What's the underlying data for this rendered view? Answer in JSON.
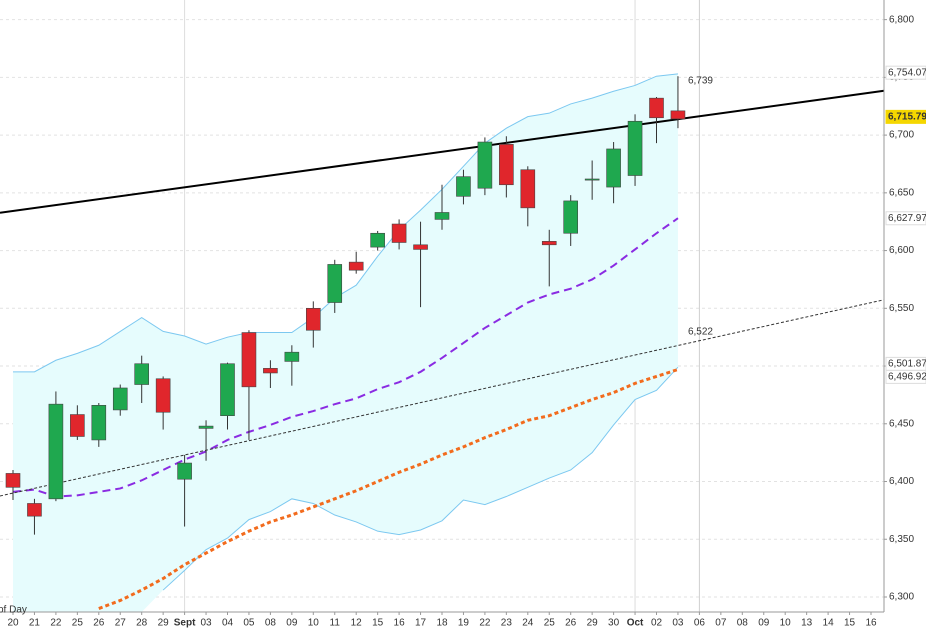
{
  "chart_data": {
    "type": "candlestick",
    "categories": [
      "20",
      "21",
      "22",
      "25",
      "26",
      "27",
      "28",
      "29",
      "Sept",
      "03",
      "04",
      "05",
      "08",
      "09",
      "10",
      "11",
      "12",
      "15",
      "16",
      "17",
      "18",
      "19",
      "22",
      "23",
      "24",
      "25",
      "26",
      "29",
      "30",
      "Oct",
      "02",
      "03",
      "06",
      "07",
      "08",
      "09",
      "10",
      "13",
      "14",
      "15",
      "16"
    ],
    "bold_categories": [
      "Sept",
      "Oct"
    ],
    "open": [
      6407,
      6381,
      6385,
      6458,
      6436,
      6462,
      6484,
      6489,
      6402,
      6446,
      6457,
      6529,
      6498,
      6504,
      6550,
      6555,
      6590,
      6603,
      6623,
      6605,
      6627,
      6647,
      6654,
      6692,
      6670,
      6608,
      6615,
      6661,
      6655,
      6665,
      6732,
      6721,
      null,
      null,
      null,
      null,
      null,
      null,
      null,
      null,
      null
    ],
    "high": [
      6410,
      6385,
      6478,
      6466,
      6468,
      6484,
      6509,
      6491,
      6423,
      6453,
      6503,
      6531,
      6505,
      6518,
      6556,
      6592,
      6599,
      6617,
      6627,
      6625,
      6657,
      6670,
      6698,
      6699,
      6673,
      6618,
      6648,
      6678,
      6694,
      6718,
      6733,
      6751,
      null,
      null,
      null,
      null,
      null,
      null,
      null,
      null,
      null
    ],
    "low": [
      6384,
      6354,
      6383,
      6436,
      6430,
      6457,
      6468,
      6445,
      6361,
      6418,
      6445,
      6436,
      6481,
      6483,
      6516,
      6546,
      6580,
      6600,
      6601,
      6551,
      6618,
      6640,
      6648,
      6646,
      6621,
      6569,
      6604,
      6644,
      6641,
      6656,
      6693,
      6706,
      null,
      null,
      null,
      null,
      null,
      null,
      null,
      null,
      null
    ],
    "close": [
      6395,
      6370,
      6467,
      6439,
      6466,
      6481,
      6502,
      6460,
      6416,
      6448,
      6502,
      6482,
      6494,
      6512,
      6531,
      6588,
      6583,
      6615,
      6607,
      6601,
      6633,
      6664,
      6694,
      6657,
      6637,
      6605,
      6643,
      6662,
      6688,
      6712,
      6715,
      6714,
      null,
      null,
      null,
      null,
      null,
      null,
      null,
      null,
      null
    ],
    "up_color": "#1fa84f",
    "down_color": "#e0262c",
    "overlays": [
      {
        "color": "#7cc8f0",
        "style": "band-upper",
        "values": [
          6495,
          6495,
          6505,
          6511,
          6518,
          6530,
          6542,
          6530,
          6526,
          6519,
          6525,
          6529,
          6529,
          6529,
          6542,
          6559,
          6570,
          6595,
          6618,
          6635,
          6653,
          6673,
          6693,
          6706,
          6716,
          6719,
          6727,
          6732,
          6738,
          6743,
          6751,
          6753,
          null,
          null,
          null,
          null,
          null,
          null,
          null,
          null,
          null
        ]
      },
      {
        "color": "#7cc8f0",
        "style": "band-lower",
        "values": [
          null,
          null,
          null,
          null,
          null,
          null,
          null,
          6306,
          6323,
          6341,
          6351,
          6367,
          6374,
          6385,
          6381,
          6371,
          6365,
          6357,
          6354,
          6358,
          6366,
          6384,
          6380,
          6387,
          6395,
          6403,
          6410,
          6425,
          6449,
          6471,
          6479,
          6499,
          null,
          null,
          null,
          null,
          null,
          null,
          null,
          null,
          null
        ]
      },
      {
        "color": "#8a2be2",
        "style": "dashed",
        "values": [
          6391,
          6393,
          6387,
          6388,
          6391,
          6394,
          6401,
          6410,
          6419,
          6426,
          6436,
          6443,
          6449,
          6456,
          6461,
          6467,
          6472,
          6480,
          6486,
          6495,
          6507,
          6520,
          6533,
          6544,
          6555,
          6562,
          6567,
          6575,
          6587,
          6601,
          6615,
          6628,
          null,
          null,
          null,
          null,
          null,
          null,
          null,
          null,
          null
        ]
      },
      {
        "color": "#f26b1d",
        "style": "dotted-thick",
        "values": [
          null,
          null,
          null,
          null,
          6290,
          6297,
          6306,
          6316,
          6328,
          6338,
          6348,
          6357,
          6365,
          6371,
          6378,
          6385,
          6392,
          6400,
          6408,
          6415,
          6423,
          6430,
          6438,
          6445,
          6453,
          6457,
          6464,
          6471,
          6477,
          6485,
          6491,
          6497,
          null,
          null,
          null,
          null,
          null,
          null,
          null,
          null,
          null
        ]
      }
    ],
    "trendlines": [
      {
        "color": "#000000",
        "style": "solid",
        "start": 6632.7,
        "end": 6738.4
      },
      {
        "color": "#333333",
        "style": "dotted",
        "start": 6387.5,
        "end": 6557.4
      }
    ],
    "annotations": [
      {
        "value": 6739,
        "label": "6,739"
      },
      {
        "value": 6522,
        "label": "6,522"
      }
    ],
    "price_labels": [
      {
        "value": 6754.07,
        "label": "6,754.07",
        "color": "#7cc8f0",
        "bg": "#ffffff"
      },
      {
        "value": 6715.79,
        "label": "6,715.79",
        "color": "#000000",
        "bg": "#f5d700"
      },
      {
        "value": 6627.97,
        "label": "6,627.97",
        "color": "#8a2be2",
        "bg": "#ffffff"
      },
      {
        "value": 6501.87,
        "label": "6,501.87",
        "color": "#7cc8f0",
        "bg": "#ffffff"
      },
      {
        "value": 6496.92,
        "label": "6,496.92",
        "color": "#f26b1d",
        "bg": "#ffffff"
      }
    ],
    "legend_text": "of Day",
    "ylim": [
      6287,
      6817
    ],
    "yticks": [
      {
        "value": 6300,
        "label": "6,300"
      },
      {
        "value": 6350,
        "label": "6,350"
      },
      {
        "value": 6400,
        "label": "6,400"
      },
      {
        "value": 6450,
        "label": "6,450"
      },
      {
        "value": 6500,
        "label": "6,500"
      },
      {
        "value": 6550,
        "label": "6,550"
      },
      {
        "value": 6600,
        "label": "6,600"
      },
      {
        "value": 6650,
        "label": "6,650"
      },
      {
        "value": 6700,
        "label": "6,700"
      },
      {
        "value": 6750,
        "label": "6,750"
      },
      {
        "value": 6800,
        "label": "6,800"
      }
    ],
    "grid": true
  }
}
